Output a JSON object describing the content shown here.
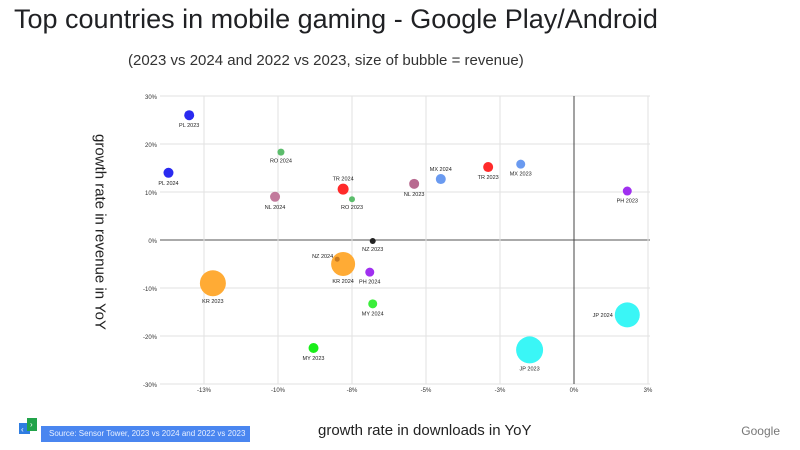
{
  "header": {
    "title": "Top countries in mobile gaming - Google Play/Android",
    "subtitle": "(2023 vs 2024 and 2022 vs 2023, size of bubble = revenue)"
  },
  "footer": {
    "source": "Source: Sensor Tower, 2023 vs 2024 and 2022 vs 2023",
    "brand": "Google"
  },
  "chart_data": {
    "type": "scatter",
    "title": "Top countries in mobile gaming - Google Play/Android",
    "xlabel": "growth rate in downloads in YoY",
    "ylabel": "growth rate in revenue in YoY",
    "xlim": [
      -14,
      3
    ],
    "ylim": [
      -30,
      30
    ],
    "x_ticks": [
      -12.5,
      -10,
      -7.5,
      -5,
      -2.5,
      0,
      2.5
    ],
    "x_tick_labels": [
      "-13%",
      "-10%",
      "-8%",
      "-5%",
      "-3%",
      "0%",
      "3%"
    ],
    "y_ticks": [
      30,
      20,
      10,
      0,
      -10,
      -20,
      -30
    ],
    "y_tick_labels": [
      "30%",
      "20%",
      "10%",
      "0%",
      "-10%",
      "-20%",
      "-30%"
    ],
    "grid": true,
    "points": [
      {
        "label": "PL 2023",
        "x": -13.0,
        "y": 26.0,
        "size": 5,
        "color": "#2a2af0"
      },
      {
        "label": "PL 2024",
        "x": -13.7,
        "y": 14.0,
        "size": 5,
        "color": "#2a2af0"
      },
      {
        "label": "RO 2024",
        "x": -9.9,
        "y": 18.3,
        "size": 3.5,
        "color": "#5cbd6c"
      },
      {
        "label": "NL 2024",
        "x": -10.1,
        "y": 9.0,
        "size": 5,
        "color": "#c27a9c"
      },
      {
        "label": "TR 2024",
        "x": -7.8,
        "y": 10.6,
        "size": 5.5,
        "color": "#ff2a2a"
      },
      {
        "label": "RO 2023",
        "x": -7.5,
        "y": 8.5,
        "size": 3,
        "color": "#5cbd6c"
      },
      {
        "label": "NL 2023",
        "x": -5.4,
        "y": 11.7,
        "size": 5,
        "color": "#b86a90"
      },
      {
        "label": "MX 2024",
        "x": -4.5,
        "y": 12.7,
        "size": 5,
        "color": "#6a9af0"
      },
      {
        "label": "TR 2023",
        "x": -2.9,
        "y": 15.2,
        "size": 5,
        "color": "#ff2a2a"
      },
      {
        "label": "MX 2023",
        "x": -1.8,
        "y": 15.8,
        "size": 4.5,
        "color": "#6a9af0"
      },
      {
        "label": "PH 2023",
        "x": 1.8,
        "y": 10.2,
        "size": 4.5,
        "color": "#a030f0"
      },
      {
        "label": "NZ 2023",
        "x": -6.8,
        "y": -0.2,
        "size": 3,
        "color": "#222222"
      },
      {
        "label": "KR 2024",
        "x": -7.8,
        "y": -5.0,
        "size": 12,
        "color": "#ffab35"
      },
      {
        "label": "NZ 2024",
        "x": -8.0,
        "y": -4.0,
        "size": 2.5,
        "color": "#c87a20"
      },
      {
        "label": "PH 2024",
        "x": -6.9,
        "y": -6.7,
        "size": 4.5,
        "color": "#a030f0"
      },
      {
        "label": "KR 2023",
        "x": -12.2,
        "y": -9.0,
        "size": 13,
        "color": "#ffab35"
      },
      {
        "label": "MY 2024",
        "x": -6.8,
        "y": -13.3,
        "size": 4.5,
        "color": "#3aee3a"
      },
      {
        "label": "MY 2023",
        "x": -8.8,
        "y": -22.5,
        "size": 5,
        "color": "#1aee1a"
      },
      {
        "label": "JP 2024",
        "x": 1.8,
        "y": -15.6,
        "size": 12.5,
        "color": "#3af6f6"
      },
      {
        "label": "JP 2023",
        "x": -1.5,
        "y": -22.9,
        "size": 13.5,
        "color": "#3af6f6"
      }
    ]
  }
}
